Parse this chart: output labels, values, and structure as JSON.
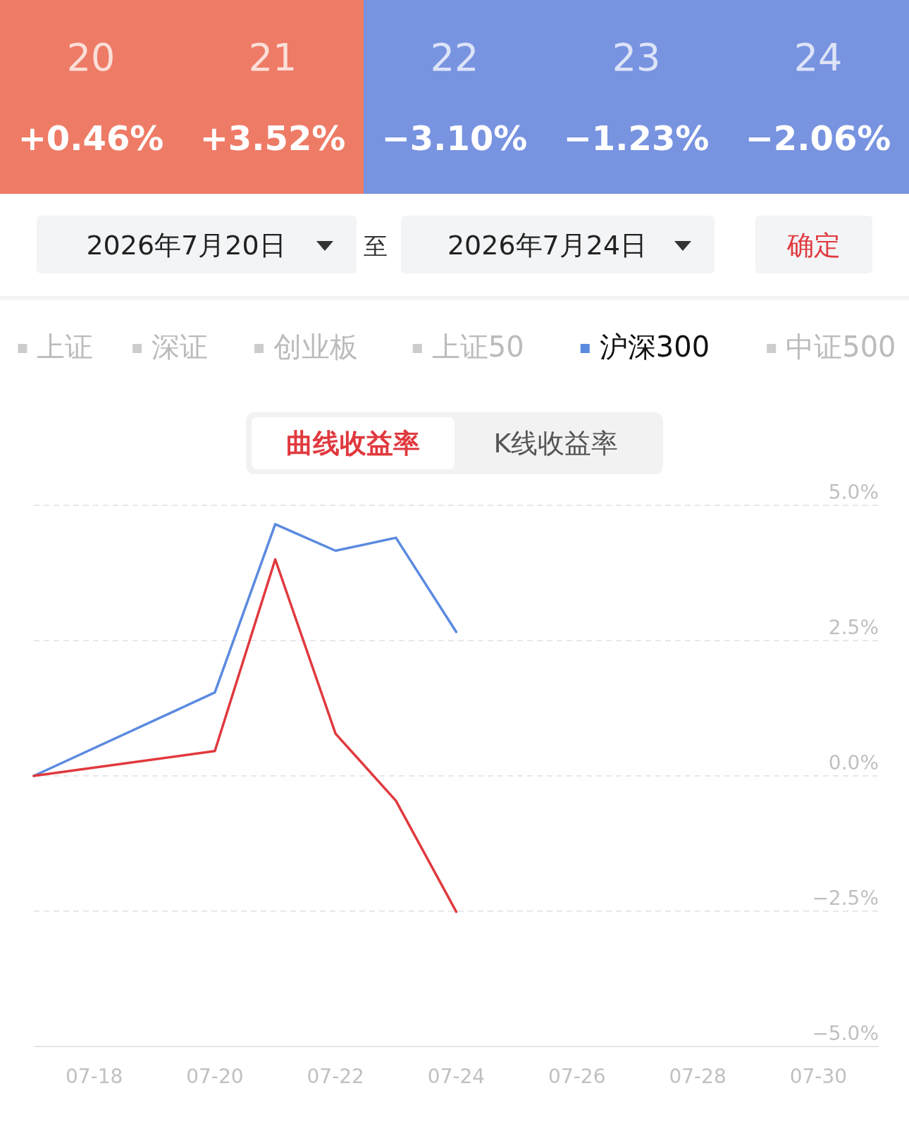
{
  "chart_data": [
    {
      "type": "heatmap",
      "categories": [
        "20",
        "21",
        "22",
        "23",
        "24"
      ],
      "y_categories": [
        null
      ],
      "cells": [
        [
          0.46,
          3.52,
          -3.1,
          -1.23,
          -2.06
        ]
      ],
      "cell_labels": [
        [
          "+0.46%",
          "+3.52%",
          "−3.10%",
          "−1.23%",
          "−2.06%"
        ]
      ],
      "colors": [
        "#7893e0",
        "#ee7b66"
      ],
      "annotations": [
        "2026年7月20日",
        "至",
        "2026年7月24日",
        "确定"
      ]
    },
    {
      "type": "line",
      "x": [
        "--07-17",
        "--07-20",
        "--07-21",
        "--07-22",
        "--07-23",
        "--07-24"
      ],
      "series": [
        {
          "name": "上证",
          "color": "#cccccc",
          "values": [
            null,
            null,
            null,
            null,
            null,
            null
          ]
        },
        {
          "name": "深证",
          "color": "#cccccc",
          "values": [
            null,
            null,
            null,
            null,
            null,
            null
          ]
        },
        {
          "name": "创业板",
          "color": "#cccccc",
          "values": [
            null,
            null,
            null,
            null,
            null,
            null
          ]
        },
        {
          "name": "上证50",
          "color": "#cccccc",
          "values": [
            null,
            null,
            null,
            null,
            null,
            null
          ]
        },
        {
          "name": "沪深300",
          "color": "#5b8ae0",
          "values": [
            0,
            1.54,
            4.65,
            4.16,
            4.4,
            2.66
          ]
        },
        {
          "name": "中证500",
          "color": "#cccccc",
          "values": [
            null,
            null,
            null,
            null,
            null,
            null
          ]
        },
        {
          "color": "#e0393e",
          "values": [
            0,
            0.46,
            4.0,
            0.78,
            -0.46,
            -2.51
          ]
        }
      ],
      "xlim": [
        "--07-17",
        "--07-31"
      ],
      "xticks": [
        {
          "value": "--07-18",
          "label": "07-18"
        },
        {
          "value": "--07-20",
          "label": "07-20"
        },
        {
          "value": "--07-22",
          "label": "07-22"
        },
        {
          "value": "--07-24",
          "label": "07-24"
        },
        {
          "value": "--07-26",
          "label": "07-26"
        },
        {
          "value": "--07-28",
          "label": "07-28"
        },
        {
          "value": "--07-30",
          "label": "07-30"
        }
      ],
      "ylim": [
        -5,
        5
      ],
      "yticks": [
        {
          "value": 5,
          "label": "5.0%"
        },
        {
          "value": 2.5,
          "label": "2.5%"
        },
        {
          "value": 0,
          "label": "0.0%"
        },
        {
          "value": -2.5,
          "label": "−2.5%"
        },
        {
          "value": -5,
          "label": "−5.0%"
        }
      ],
      "grid": "y",
      "legend": "top",
      "annotations": [
        "曲线收益率",
        "K线收益率"
      ]
    }
  ]
}
